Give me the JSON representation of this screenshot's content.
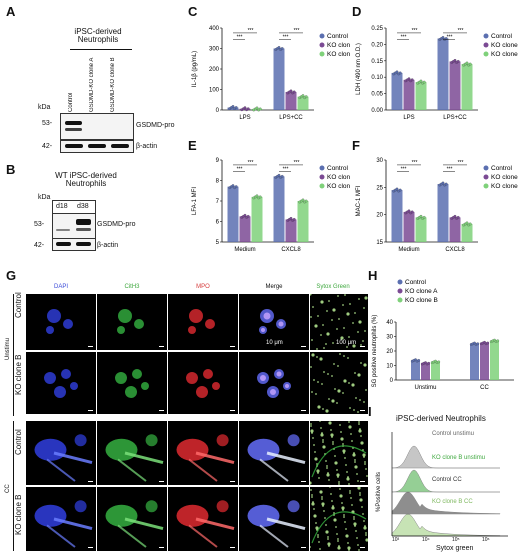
{
  "panels": {
    "A": "A",
    "B": "B",
    "C": "C",
    "D": "D",
    "E": "E",
    "F": "F",
    "G": "G",
    "H": "H",
    "I": "I"
  },
  "panel_a": {
    "title_line1": "iPSC-derived",
    "title_line2": "Neutrophils",
    "lanes": [
      "Control",
      "GSDMD-KO clone A",
      "GSDMD-KO clone B"
    ],
    "kda": "kDa",
    "mw_top": "53-",
    "mw_bot": "42-",
    "label_top": "GSDMD-pro",
    "label_bot": "β-actin"
  },
  "panel_b": {
    "title_line1": "WT iPSC-derived",
    "title_line2": "Neutrophils",
    "lanes": [
      "d18",
      "d38"
    ],
    "kda": "kDa",
    "mw_top": "53-",
    "mw_bot": "42-",
    "label_top": "GSDMD-pro",
    "label_bot": "β-actin"
  },
  "legend": {
    "control": "Control",
    "ko_a": "KO clone A",
    "ko_b": "KO clone B"
  },
  "colors": {
    "control": "#5b6fb0",
    "ko_a": "#7b4a94",
    "ko_b": "#7fd17a"
  },
  "sig": "***",
  "chart_data": [
    {
      "panel": "C",
      "type": "bar",
      "categories": [
        "LPS",
        "LPS+CC"
      ],
      "ylabel": "IL-1β (pg/mL)",
      "ylim": [
        0,
        400
      ],
      "yticks": [
        0,
        100,
        200,
        300,
        400
      ],
      "series": [
        {
          "name": "Control",
          "values": [
            12,
            300
          ]
        },
        {
          "name": "KO clone A",
          "values": [
            6,
            88
          ]
        },
        {
          "name": "KO clone B",
          "values": [
            5,
            65
          ]
        }
      ]
    },
    {
      "panel": "D",
      "type": "bar",
      "categories": [
        "LPS",
        "LPS+CC"
      ],
      "ylabel": "LDH (490 nm O.D.)",
      "ylim": [
        0,
        0.25
      ],
      "yticks": [
        0.0,
        0.05,
        0.1,
        0.15,
        0.2,
        0.25
      ],
      "series": [
        {
          "name": "Control",
          "values": [
            0.113,
            0.218
          ]
        },
        {
          "name": "KO clone A",
          "values": [
            0.092,
            0.148
          ]
        },
        {
          "name": "KO clone B",
          "values": [
            0.085,
            0.14
          ]
        }
      ]
    },
    {
      "panel": "E",
      "type": "bar",
      "categories": [
        "Medium",
        "CXCL8"
      ],
      "ylabel": "LFA-1 MFI",
      "ylim": [
        5,
        9
      ],
      "yticks": [
        5,
        6,
        7,
        8,
        9
      ],
      "series": [
        {
          "name": "Control",
          "values": [
            7.7,
            8.2
          ]
        },
        {
          "name": "KO clone A",
          "values": [
            6.25,
            6.1
          ]
        },
        {
          "name": "KO clone B",
          "values": [
            7.2,
            7.0
          ]
        }
      ]
    },
    {
      "panel": "F",
      "type": "bar",
      "categories": [
        "Medium",
        "CXCL8"
      ],
      "ylabel": "MAC-1 MFI",
      "ylim": [
        15,
        30
      ],
      "yticks": [
        15,
        20,
        25,
        30
      ],
      "series": [
        {
          "name": "Control",
          "values": [
            24.5,
            25.6
          ]
        },
        {
          "name": "KO clone A",
          "values": [
            20.5,
            19.5
          ]
        },
        {
          "name": "KO clone B",
          "values": [
            19.5,
            18.3
          ]
        }
      ]
    },
    {
      "panel": "H",
      "type": "bar",
      "categories": [
        "Unstimu",
        "CC"
      ],
      "ylabel": "SG positive neutrophils (%)",
      "ylim": [
        0,
        40
      ],
      "yticks": [
        0,
        10,
        20,
        30,
        40
      ],
      "series": [
        {
          "name": "Control",
          "values": [
            13.5,
            25
          ]
        },
        {
          "name": "KO clone A",
          "values": [
            11.5,
            25.5
          ]
        },
        {
          "name": "KO clone B",
          "values": [
            12.5,
            27
          ]
        }
      ]
    }
  ],
  "panel_g": {
    "channels": [
      "DAPI",
      "CitH3",
      "MPO",
      "Merge",
      "Sytox Green"
    ],
    "channel_colors": [
      "#3b4bd8",
      "#3fa83f",
      "#d63b3b",
      "#222222",
      "#3fa83f"
    ],
    "group_unstim": "Unstimu",
    "group_cc": "CC",
    "rows": [
      "Control",
      "KO clone B",
      "Control",
      "KO clone B"
    ],
    "scale_10": "10 μm",
    "scale_100": "100 μm"
  },
  "panel_i": {
    "title": "iPSC-derived Neutrophils",
    "ylabel": "%Positive cells",
    "xlabel": "Sytox green",
    "xticks": [
      "10³",
      "10⁴",
      "10⁵",
      "10⁶"
    ],
    "traces": [
      {
        "label": "Control unstimu",
        "color": "#999999"
      },
      {
        "label": "KO clone B unstimu",
        "color": "#3fa83f"
      },
      {
        "label": "Control CC",
        "color": "#333333"
      },
      {
        "label": "KO clone B CC",
        "color": "#9acd7a"
      }
    ]
  }
}
